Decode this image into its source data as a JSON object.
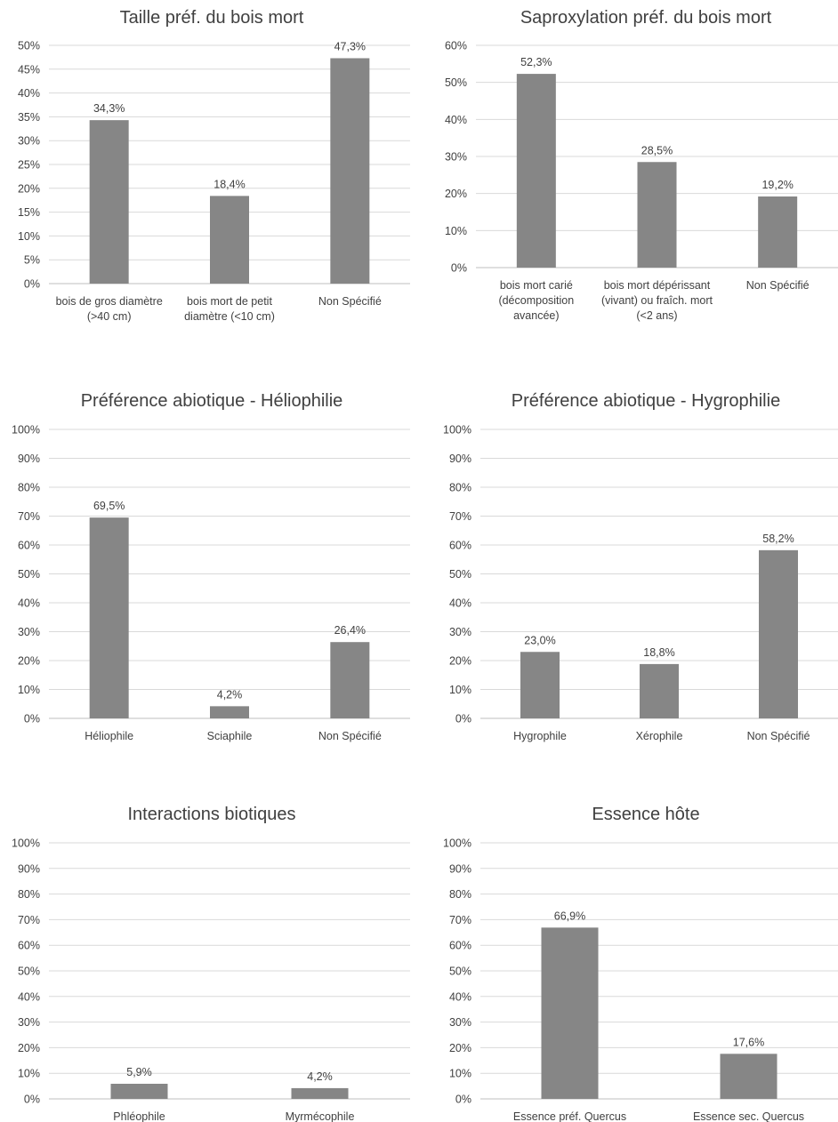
{
  "colors": {
    "bar": "#868686",
    "grid": "#d9d9d9",
    "text": "#404040"
  },
  "chart_data": [
    {
      "type": "bar",
      "title": "Taille préf. du bois mort",
      "categories": [
        [
          "bois de gros diamètre",
          "(>40 cm)"
        ],
        [
          "bois mort de petit",
          "diamètre (<10 cm)"
        ],
        [
          "Non Spécifié"
        ]
      ],
      "values": [
        34.3,
        18.4,
        47.3
      ],
      "data_labels": [
        "34,3%",
        "18,4%",
        "47,3%"
      ],
      "ylim": [
        0,
        50
      ],
      "yticks": [
        0,
        5,
        10,
        15,
        20,
        25,
        30,
        35,
        40,
        45,
        50
      ],
      "ytick_labels": [
        "0%",
        "5%",
        "10%",
        "15%",
        "20%",
        "25%",
        "30%",
        "35%",
        "40%",
        "45%",
        "50%"
      ],
      "grid": true,
      "legend": "none"
    },
    {
      "type": "bar",
      "title": "Saproxylation préf. du bois mort",
      "categories": [
        [
          "bois mort carié",
          "(décomposition",
          "avancée)"
        ],
        [
          "bois mort dépérissant",
          "(vivant) ou fraîch. mort",
          "(<2 ans)"
        ],
        [
          "Non Spécifié"
        ]
      ],
      "values": [
        52.3,
        28.5,
        19.2
      ],
      "data_labels": [
        "52,3%",
        "28,5%",
        "19,2%"
      ],
      "ylim": [
        0,
        60
      ],
      "yticks": [
        0,
        10,
        20,
        30,
        40,
        50,
        60
      ],
      "ytick_labels": [
        "0%",
        "10%",
        "20%",
        "30%",
        "40%",
        "50%",
        "60%"
      ],
      "grid": true,
      "legend": "none"
    },
    {
      "type": "bar",
      "title": "Préférence abiotique - Héliophilie",
      "categories": [
        [
          "Héliophile"
        ],
        [
          "Sciaphile"
        ],
        [
          "Non Spécifié"
        ]
      ],
      "values": [
        69.5,
        4.2,
        26.4
      ],
      "data_labels": [
        "69,5%",
        "4,2%",
        "26,4%"
      ],
      "ylim": [
        0,
        100
      ],
      "yticks": [
        0,
        10,
        20,
        30,
        40,
        50,
        60,
        70,
        80,
        90,
        100
      ],
      "ytick_labels": [
        "0%",
        "10%",
        "20%",
        "30%",
        "40%",
        "50%",
        "60%",
        "70%",
        "80%",
        "90%",
        "100%"
      ],
      "grid": true,
      "legend": "none"
    },
    {
      "type": "bar",
      "title": "Préférence abiotique - Hygrophilie",
      "categories": [
        [
          "Hygrophile"
        ],
        [
          "Xérophile"
        ],
        [
          "Non Spécifié"
        ]
      ],
      "values": [
        23.0,
        18.8,
        58.2
      ],
      "data_labels": [
        "23,0%",
        "18,8%",
        "58,2%"
      ],
      "ylim": [
        0,
        100
      ],
      "yticks": [
        0,
        10,
        20,
        30,
        40,
        50,
        60,
        70,
        80,
        90,
        100
      ],
      "ytick_labels": [
        "0%",
        "10%",
        "20%",
        "30%",
        "40%",
        "50%",
        "60%",
        "70%",
        "80%",
        "90%",
        "100%"
      ],
      "grid": true,
      "legend": "none"
    },
    {
      "type": "bar",
      "title": "Interactions biotiques",
      "categories": [
        [
          "Phléophile"
        ],
        [
          "Myrmécophile"
        ]
      ],
      "values": [
        5.9,
        4.2
      ],
      "data_labels": [
        "5,9%",
        "4,2%"
      ],
      "ylim": [
        0,
        100
      ],
      "yticks": [
        0,
        10,
        20,
        30,
        40,
        50,
        60,
        70,
        80,
        90,
        100
      ],
      "ytick_labels": [
        "0%",
        "10%",
        "20%",
        "30%",
        "40%",
        "50%",
        "60%",
        "70%",
        "80%",
        "90%",
        "100%"
      ],
      "grid": true,
      "legend": "none"
    },
    {
      "type": "bar",
      "title": "Essence hôte",
      "categories": [
        [
          "Essence préf. Quercus"
        ],
        [
          "Essence sec. Quercus"
        ]
      ],
      "values": [
        66.9,
        17.6
      ],
      "data_labels": [
        "66,9%",
        "17,6%"
      ],
      "ylim": [
        0,
        100
      ],
      "yticks": [
        0,
        10,
        20,
        30,
        40,
        50,
        60,
        70,
        80,
        90,
        100
      ],
      "ytick_labels": [
        "0%",
        "10%",
        "20%",
        "30%",
        "40%",
        "50%",
        "60%",
        "70%",
        "80%",
        "90%",
        "100%"
      ],
      "grid": true,
      "legend": "none"
    }
  ]
}
